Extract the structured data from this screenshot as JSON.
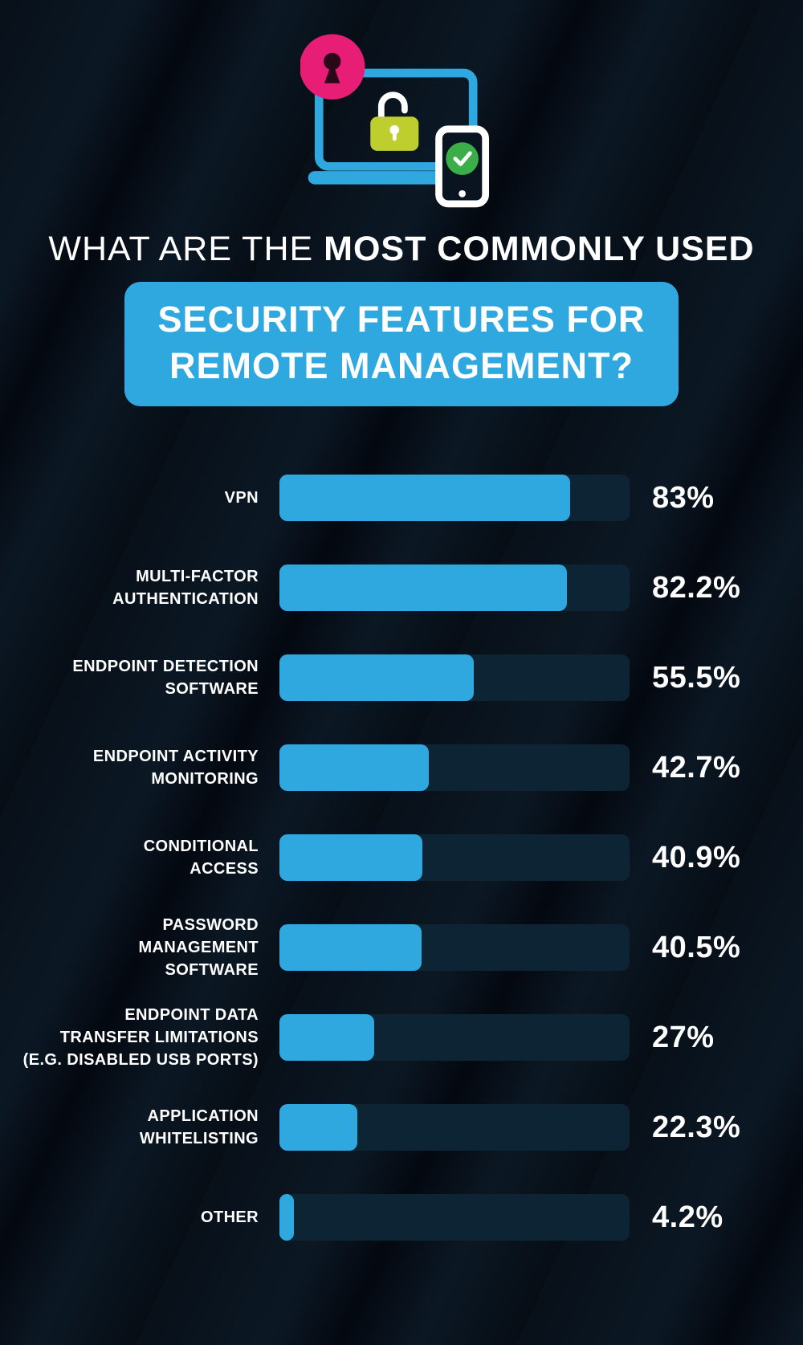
{
  "header": {
    "title_light": "WHAT ARE THE ",
    "title_bold": "MOST COMMONLY USED",
    "subtitle_line1": "SECURITY FEATURES FOR",
    "subtitle_line2": "REMOTE MANAGEMENT?"
  },
  "colors": {
    "background": "#060c13",
    "accent_blue": "#2fa8e0",
    "bar_track": "#0d2434",
    "pink": "#e81d75",
    "lime": "#bfce2f",
    "green": "#3bae49",
    "white": "#ffffff"
  },
  "icons": {
    "hero": [
      "lock-keyhole-icon",
      "laptop-icon",
      "padlock-icon",
      "smartphone-icon",
      "check-icon"
    ]
  },
  "chart_data": {
    "type": "bar",
    "orientation": "horizontal",
    "title": "What are the most commonly used security features for remote management?",
    "xlabel": "",
    "ylabel": "",
    "xlim": [
      0,
      100
    ],
    "unit": "%",
    "grid": false,
    "legend": false,
    "categories": [
      "VPN",
      "MULTI-FACTOR AUTHENTICATION",
      "ENDPOINT DETECTION SOFTWARE",
      "ENDPOINT ACTIVITY MONITORING",
      "CONDITIONAL ACCESS",
      "PASSWORD MANAGEMENT SOFTWARE",
      "ENDPOINT DATA TRANSFER LIMITATIONS (E.G. DISABLED USB PORTS)",
      "APPLICATION WHITELISTING",
      "OTHER"
    ],
    "values": [
      83,
      82.2,
      55.5,
      42.7,
      40.9,
      40.5,
      27,
      22.3,
      4.2
    ],
    "bars": [
      {
        "label_display": "VPN",
        "value": 83,
        "value_label": "83%"
      },
      {
        "label_display": "MULTI-FACTOR\nAUTHENTICATION",
        "value": 82.2,
        "value_label": "82.2%"
      },
      {
        "label_display": "ENDPOINT DETECTION\nSOFTWARE",
        "value": 55.5,
        "value_label": "55.5%"
      },
      {
        "label_display": "ENDPOINT ACTIVITY\nMONITORING",
        "value": 42.7,
        "value_label": "42.7%"
      },
      {
        "label_display": "CONDITIONAL\nACCESS",
        "value": 40.9,
        "value_label": "40.9%"
      },
      {
        "label_display": "PASSWORD\nMANAGEMENT\nSOFTWARE",
        "value": 40.5,
        "value_label": "40.5%"
      },
      {
        "label_display": "ENDPOINT DATA\nTRANSFER LIMITATIONS\n(E.G. DISABLED USB PORTS)",
        "value": 27,
        "value_label": "27%"
      },
      {
        "label_display": "APPLICATION\nWHITELISTING",
        "value": 22.3,
        "value_label": "22.3%"
      },
      {
        "label_display": "OTHER",
        "value": 4.2,
        "value_label": "4.2%"
      }
    ]
  }
}
